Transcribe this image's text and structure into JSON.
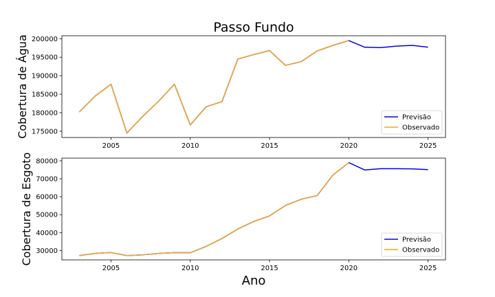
{
  "chart_data": {
    "type": "line",
    "title": "Passo Fundo",
    "xlabel": "Ano",
    "colors": {
      "previsao": "#0000ee",
      "observado": "#f5a623"
    },
    "panels": [
      {
        "ylabel": "Cobertura de Água",
        "xlim": [
          2001.9,
          2026.1
        ],
        "ylim": [
          173300,
          200800
        ],
        "xticks": [
          "2005",
          "2010",
          "2015",
          "2020",
          "2025"
        ],
        "yticks": [
          "175000",
          "180000",
          "185000",
          "190000",
          "195000",
          "200000"
        ],
        "legend_position": "lower-right",
        "series": [
          {
            "name": "Previsão",
            "x": [
              2003,
              2004,
              2005,
              2006,
              2007,
              2008,
              2009,
              2010,
              2011,
              2012,
              2013,
              2014,
              2015,
              2016,
              2017,
              2018,
              2019,
              2020,
              2021,
              2022,
              2023,
              2024,
              2025
            ],
            "y": [
              180200,
              184500,
              187700,
              174500,
              179000,
              183100,
              187700,
              176700,
              181600,
              183000,
              194500,
              195700,
              196800,
              192800,
              193800,
              196700,
              198200,
              199500,
              197700,
              197600,
              198000,
              198200,
              197700
            ]
          },
          {
            "name": "Observado",
            "x": [
              2003,
              2004,
              2005,
              2006,
              2007,
              2008,
              2009,
              2010,
              2011,
              2012,
              2013,
              2014,
              2015,
              2016,
              2017,
              2018,
              2019,
              2020
            ],
            "y": [
              180200,
              184500,
              187700,
              174500,
              179000,
              183100,
              187700,
              176700,
              181600,
              183000,
              194500,
              195700,
              196800,
              192800,
              193800,
              196700,
              198200,
              199500
            ]
          }
        ]
      },
      {
        "ylabel": "Cobertura de Esgoto",
        "xlim": [
          2001.9,
          2026.1
        ],
        "ylim": [
          24800,
          81500
        ],
        "xticks": [
          "2005",
          "2010",
          "2015",
          "2020",
          "2025"
        ],
        "yticks": [
          "30000",
          "40000",
          "50000",
          "60000",
          "70000",
          "80000"
        ],
        "legend_position": "lower-right",
        "series": [
          {
            "name": "Previsão",
            "x": [
              2003,
              2004,
              2005,
              2006,
              2007,
              2008,
              2009,
              2010,
              2011,
              2012,
              2013,
              2014,
              2015,
              2016,
              2017,
              2018,
              2019,
              2020,
              2021,
              2022,
              2023,
              2024,
              2025
            ],
            "y": [
              27200,
              28400,
              28900,
              27200,
              27600,
              28400,
              28800,
              28800,
              32300,
              36700,
              42000,
              46200,
              49300,
              55100,
              58600,
              60600,
              72100,
              79000,
              74900,
              75600,
              75600,
              75500,
              75100
            ]
          },
          {
            "name": "Observado",
            "x": [
              2003,
              2004,
              2005,
              2006,
              2007,
              2008,
              2009,
              2010,
              2011,
              2012,
              2013,
              2014,
              2015,
              2016,
              2017,
              2018,
              2019,
              2020
            ],
            "y": [
              27200,
              28400,
              28900,
              27200,
              27600,
              28400,
              28800,
              28800,
              32300,
              36700,
              42000,
              46200,
              49300,
              55100,
              58600,
              60600,
              72100,
              79000
            ]
          }
        ]
      }
    ]
  }
}
